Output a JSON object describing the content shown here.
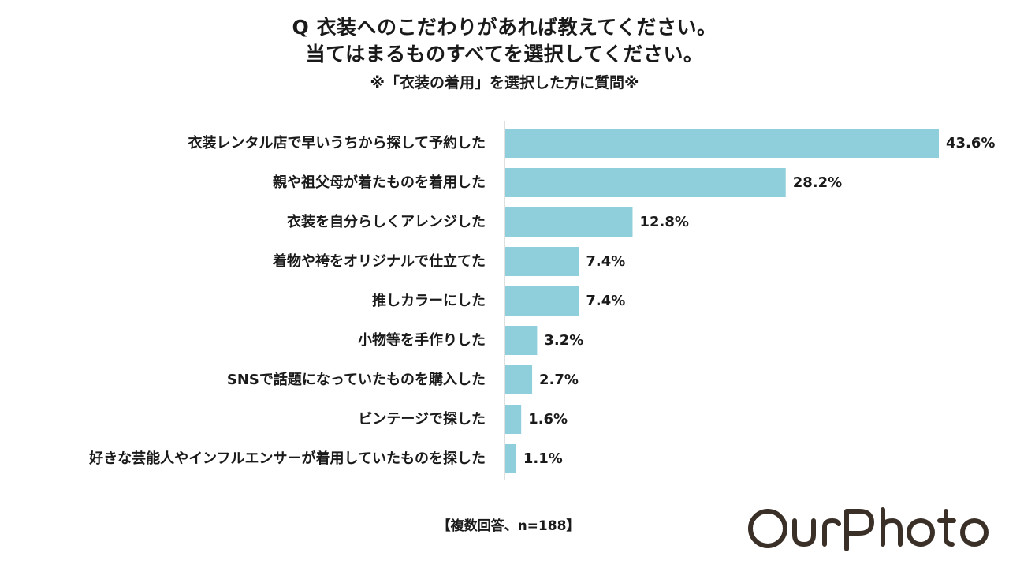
{
  "title": {
    "line1": "Q 衣装へのこだわりがあれば教えてください。",
    "line2": "当てはまるものすべてを選択してください。",
    "note": "※「衣装の着用」を選択した方に質問※"
  },
  "footnote": "【複数回答、n=188】",
  "brand": {
    "name": "OurPhoto",
    "color": "#3a3028"
  },
  "colors": {
    "bar": "#8ecfdb",
    "axis": "#bfbfbf"
  },
  "chart_data": {
    "type": "bar",
    "orientation": "horizontal",
    "categories": [
      "衣装レンタル店で早いうちから探して予約した",
      "親や祖父母が着たものを着用した",
      "衣装を自分らしくアレンジした",
      "着物や袴をオリジナルで仕立てた",
      "推しカラーにした",
      "小物等を手作りした",
      "SNSで話題になっていたものを購入した",
      "ビンテージで探した",
      "好きな芸能人やインフルエンサーが着用していたものを探した"
    ],
    "values": [
      43.6,
      28.2,
      12.8,
      7.4,
      7.4,
      3.2,
      2.7,
      1.6,
      1.1
    ],
    "value_labels": [
      "43.6%",
      "28.2%",
      "12.8%",
      "7.4%",
      "7.4%",
      "3.2%",
      "2.7%",
      "1.6%",
      "1.1%"
    ],
    "unit": "%",
    "xlim": [
      0,
      43.6
    ],
    "grid": false,
    "legend": "none"
  }
}
